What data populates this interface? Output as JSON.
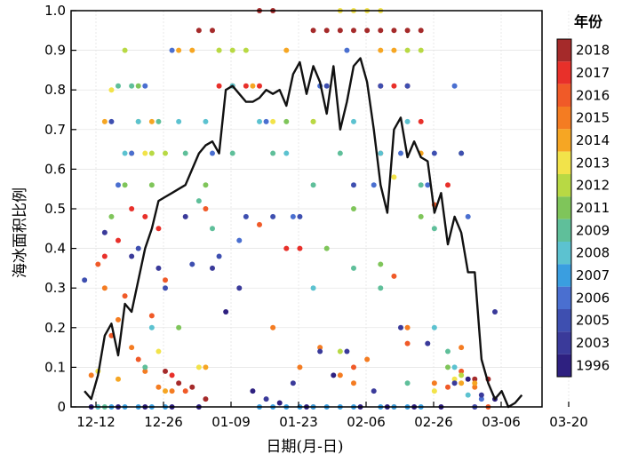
{
  "chart_data": {
    "type": "scatter",
    "xlabel": "日期(月-日)",
    "ylabel": "海冰面积比例",
    "ylim": [
      0,
      1.0
    ],
    "xlim": [
      -2,
      68
    ],
    "x_ticks": [
      "12-12",
      "12-26",
      "01-09",
      "01-23",
      "02-06",
      "02-26",
      "03-06",
      "03-20"
    ],
    "y_ticks": [
      "0",
      "0.1",
      "0.2",
      "0.3",
      "0.4",
      "0.5",
      "0.6",
      "0.7",
      "0.8",
      "0.9",
      "1.0"
    ],
    "grid": true,
    "legend": {
      "title": "年份",
      "position": "right",
      "entries": [
        "2018",
        "2017",
        "2016",
        "2015",
        "2014",
        "2013",
        "2012",
        "2011",
        "2009",
        "2008",
        "2007",
        "2006",
        "2005",
        "2003",
        "1996"
      ],
      "colors": [
        "#a52a2a",
        "#e8302a",
        "#f05a28",
        "#f47c22",
        "#f6a623",
        "#f2e34a",
        "#b8d944",
        "#7fc55a",
        "#5fbf9a",
        "#5cc2d0",
        "#3a9ee0",
        "#4a6fd0",
        "#3e4fb0",
        "#3a3a9a",
        "#2e2080"
      ]
    },
    "series": [
      {
        "name": "2018",
        "values": [
          [
            12,
            0.09
          ],
          [
            14,
            0.06
          ],
          [
            16,
            0.05
          ],
          [
            18,
            0.02
          ],
          [
            17,
            0.95
          ],
          [
            19,
            0.95
          ],
          [
            26,
            1.0
          ],
          [
            28,
            1.0
          ],
          [
            34,
            0.95
          ],
          [
            36,
            0.95
          ],
          [
            38,
            0.95
          ],
          [
            40,
            0.95
          ],
          [
            42,
            0.95
          ],
          [
            44,
            0.95
          ],
          [
            46,
            0.95
          ],
          [
            48,
            0.95
          ],
          [
            50,
            0.95
          ],
          [
            58,
            0.07
          ],
          [
            60,
            0.07
          ]
        ]
      },
      {
        "name": "2017",
        "values": [
          [
            3,
            0.38
          ],
          [
            5,
            0.42
          ],
          [
            7,
            0.5
          ],
          [
            9,
            0.48
          ],
          [
            11,
            0.45
          ],
          [
            13,
            0.08
          ],
          [
            20,
            0.81
          ],
          [
            22,
            0.81
          ],
          [
            24,
            0.81
          ],
          [
            26,
            0.81
          ],
          [
            30,
            0.4
          ],
          [
            32,
            0.4
          ],
          [
            44,
            0.81
          ],
          [
            46,
            0.81
          ],
          [
            48,
            0.81
          ],
          [
            50,
            0.72
          ],
          [
            54,
            0.56
          ],
          [
            58,
            0.0
          ]
        ]
      },
      {
        "name": "2016",
        "values": [
          [
            2,
            0.36
          ],
          [
            4,
            0.18
          ],
          [
            6,
            0.28
          ],
          [
            8,
            0.12
          ],
          [
            10,
            0.23
          ],
          [
            12,
            0.32
          ],
          [
            15,
            0.04
          ],
          [
            18,
            0.5
          ],
          [
            26,
            0.46
          ],
          [
            34,
            0.0
          ],
          [
            40,
            0.1
          ],
          [
            44,
            0.64
          ],
          [
            46,
            0.33
          ],
          [
            48,
            0.16
          ],
          [
            52,
            0.51
          ],
          [
            54,
            0.05
          ],
          [
            56,
            0.09
          ],
          [
            60,
            0.0
          ]
        ]
      },
      {
        "name": "2015",
        "values": [
          [
            1,
            0.08
          ],
          [
            3,
            0.3
          ],
          [
            5,
            0.22
          ],
          [
            7,
            0.15
          ],
          [
            9,
            0.09
          ],
          [
            11,
            0.05
          ],
          [
            13,
            0.04
          ],
          [
            28,
            0.2
          ],
          [
            32,
            0.1
          ],
          [
            35,
            0.15
          ],
          [
            38,
            0.08
          ],
          [
            40,
            0.06
          ],
          [
            42,
            0.12
          ],
          [
            46,
            0.0
          ],
          [
            48,
            0.2
          ],
          [
            52,
            0.06
          ],
          [
            56,
            0.15
          ],
          [
            58,
            0.05
          ]
        ]
      },
      {
        "name": "2014",
        "values": [
          [
            3,
            0.72
          ],
          [
            5,
            0.07
          ],
          [
            7,
            0.64
          ],
          [
            10,
            0.72
          ],
          [
            12,
            0.04
          ],
          [
            14,
            0.9
          ],
          [
            16,
            0.9
          ],
          [
            18,
            0.1
          ],
          [
            25,
            0.81
          ],
          [
            30,
            0.9
          ],
          [
            34,
            0.72
          ],
          [
            44,
            0.9
          ],
          [
            46,
            0.9
          ],
          [
            50,
            0.64
          ],
          [
            56,
            0.06
          ],
          [
            58,
            0.06
          ]
        ]
      },
      {
        "name": "2013",
        "values": [
          [
            2,
            0.09
          ],
          [
            4,
            0.8
          ],
          [
            9,
            0.64
          ],
          [
            11,
            0.14
          ],
          [
            17,
            0.1
          ],
          [
            20,
            0.9
          ],
          [
            28,
            0.72
          ],
          [
            38,
            1.0
          ],
          [
            40,
            1.0
          ],
          [
            42,
            1.0
          ],
          [
            44,
            1.0
          ],
          [
            46,
            0.58
          ],
          [
            52,
            0.04
          ],
          [
            55,
            0.07
          ]
        ]
      },
      {
        "name": "2012",
        "values": [
          [
            2,
            0.0
          ],
          [
            6,
            0.9
          ],
          [
            8,
            0.72
          ],
          [
            10,
            0.64
          ],
          [
            12,
            0.64
          ],
          [
            20,
            0.9
          ],
          [
            22,
            0.9
          ],
          [
            24,
            0.9
          ],
          [
            34,
            0.72
          ],
          [
            38,
            0.14
          ],
          [
            48,
            0.9
          ],
          [
            50,
            0.9
          ],
          [
            56,
            0.08
          ]
        ]
      },
      {
        "name": "2011",
        "values": [
          [
            4,
            0.48
          ],
          [
            6,
            0.56
          ],
          [
            8,
            0.81
          ],
          [
            10,
            0.56
          ],
          [
            14,
            0.2
          ],
          [
            18,
            0.56
          ],
          [
            22,
            0.81
          ],
          [
            30,
            0.72
          ],
          [
            36,
            0.4
          ],
          [
            40,
            0.5
          ],
          [
            44,
            0.36
          ],
          [
            50,
            0.48
          ],
          [
            54,
            0.1
          ],
          [
            56,
            0.64
          ]
        ]
      },
      {
        "name": "2009",
        "values": [
          [
            3,
            0.0
          ],
          [
            5,
            0.81
          ],
          [
            7,
            0.81
          ],
          [
            9,
            0.1
          ],
          [
            11,
            0.72
          ],
          [
            15,
            0.64
          ],
          [
            17,
            0.52
          ],
          [
            19,
            0.45
          ],
          [
            22,
            0.64
          ],
          [
            28,
            0.64
          ],
          [
            34,
            0.56
          ],
          [
            38,
            0.64
          ],
          [
            40,
            0.35
          ],
          [
            44,
            0.3
          ],
          [
            48,
            0.06
          ],
          [
            50,
            0.56
          ],
          [
            52,
            0.45
          ],
          [
            54,
            0.14
          ]
        ]
      },
      {
        "name": "2008",
        "values": [
          [
            2,
            0.0
          ],
          [
            6,
            0.64
          ],
          [
            8,
            0.72
          ],
          [
            10,
            0.2
          ],
          [
            14,
            0.72
          ],
          [
            18,
            0.72
          ],
          [
            22,
            0.81
          ],
          [
            26,
            0.72
          ],
          [
            30,
            0.64
          ],
          [
            34,
            0.3
          ],
          [
            40,
            0.72
          ],
          [
            44,
            0.64
          ],
          [
            48,
            0.72
          ],
          [
            52,
            0.2
          ],
          [
            55,
            0.1
          ],
          [
            57,
            0.03
          ]
        ]
      },
      {
        "name": "2007",
        "values": [
          [
            4,
            0.0
          ],
          [
            6,
            0.0
          ],
          [
            8,
            0.0
          ],
          [
            10,
            0.0
          ],
          [
            12,
            0.0
          ],
          [
            26,
            0.0
          ],
          [
            28,
            0.0
          ],
          [
            30,
            0.0
          ],
          [
            32,
            0.0
          ],
          [
            34,
            0.0
          ],
          [
            36,
            0.0
          ],
          [
            38,
            0.0
          ],
          [
            40,
            0.0
          ],
          [
            44,
            0.0
          ],
          [
            46,
            0.0
          ],
          [
            48,
            0.0
          ],
          [
            50,
            0.0
          ]
        ]
      },
      {
        "name": "2006",
        "values": [
          [
            5,
            0.56
          ],
          [
            7,
            0.64
          ],
          [
            9,
            0.81
          ],
          [
            13,
            0.9
          ],
          [
            19,
            0.64
          ],
          [
            23,
            0.42
          ],
          [
            27,
            0.72
          ],
          [
            31,
            0.48
          ],
          [
            35,
            0.81
          ],
          [
            39,
            0.9
          ],
          [
            43,
            0.56
          ],
          [
            47,
            0.64
          ],
          [
            51,
            0.56
          ],
          [
            55,
            0.81
          ],
          [
            57,
            0.48
          ],
          [
            59,
            0.02
          ]
        ]
      },
      {
        "name": "2005",
        "values": [
          [
            0,
            0.32
          ],
          [
            4,
            0.72
          ],
          [
            8,
            0.4
          ],
          [
            12,
            0.3
          ],
          [
            16,
            0.36
          ],
          [
            20,
            0.38
          ],
          [
            24,
            0.48
          ],
          [
            28,
            0.48
          ],
          [
            32,
            0.48
          ],
          [
            36,
            0.81
          ],
          [
            40,
            0.56
          ],
          [
            44,
            0.81
          ],
          [
            48,
            0.81
          ],
          [
            52,
            0.64
          ],
          [
            56,
            0.64
          ],
          [
            58,
            0.0
          ]
        ]
      },
      {
        "name": "2003",
        "values": [
          [
            3,
            0.44
          ],
          [
            7,
            0.38
          ],
          [
            11,
            0.35
          ],
          [
            15,
            0.48
          ],
          [
            19,
            0.35
          ],
          [
            23,
            0.3
          ],
          [
            27,
            0.02
          ],
          [
            31,
            0.06
          ],
          [
            35,
            0.14
          ],
          [
            39,
            0.14
          ],
          [
            43,
            0.04
          ],
          [
            47,
            0.2
          ],
          [
            51,
            0.16
          ],
          [
            55,
            0.06
          ],
          [
            59,
            0.03
          ],
          [
            61,
            0.24
          ]
        ]
      },
      {
        "name": "1996",
        "values": [
          [
            1,
            0.0
          ],
          [
            5,
            0.0
          ],
          [
            9,
            0.0
          ],
          [
            13,
            0.0
          ],
          [
            17,
            0.0
          ],
          [
            21,
            0.24
          ],
          [
            25,
            0.04
          ],
          [
            29,
            0.01
          ],
          [
            33,
            0.0
          ],
          [
            37,
            0.08
          ],
          [
            41,
            0.0
          ],
          [
            45,
            0.0
          ],
          [
            49,
            0.0
          ],
          [
            53,
            0.0
          ],
          [
            57,
            0.07
          ],
          [
            61,
            0.02
          ]
        ]
      }
    ],
    "mean_line": {
      "values": [
        [
          0,
          0.04
        ],
        [
          1,
          0.02
        ],
        [
          2,
          0.08
        ],
        [
          3,
          0.18
        ],
        [
          4,
          0.21
        ],
        [
          5,
          0.13
        ],
        [
          6,
          0.26
        ],
        [
          7,
          0.24
        ],
        [
          8,
          0.32
        ],
        [
          9,
          0.4
        ],
        [
          10,
          0.45
        ],
        [
          11,
          0.52
        ],
        [
          12,
          0.53
        ],
        [
          13,
          0.54
        ],
        [
          14,
          0.55
        ],
        [
          15,
          0.56
        ],
        [
          16,
          0.6
        ],
        [
          17,
          0.64
        ],
        [
          18,
          0.66
        ],
        [
          19,
          0.67
        ],
        [
          20,
          0.64
        ],
        [
          21,
          0.8
        ],
        [
          22,
          0.81
        ],
        [
          23,
          0.79
        ],
        [
          24,
          0.77
        ],
        [
          25,
          0.77
        ],
        [
          26,
          0.78
        ],
        [
          27,
          0.8
        ],
        [
          28,
          0.79
        ],
        [
          29,
          0.8
        ],
        [
          30,
          0.76
        ],
        [
          31,
          0.84
        ],
        [
          32,
          0.87
        ],
        [
          33,
          0.79
        ],
        [
          34,
          0.86
        ],
        [
          35,
          0.82
        ],
        [
          36,
          0.74
        ],
        [
          37,
          0.86
        ],
        [
          38,
          0.7
        ],
        [
          39,
          0.77
        ],
        [
          40,
          0.86
        ],
        [
          41,
          0.88
        ],
        [
          42,
          0.82
        ],
        [
          43,
          0.7
        ],
        [
          44,
          0.56
        ],
        [
          45,
          0.49
        ],
        [
          46,
          0.7
        ],
        [
          47,
          0.73
        ],
        [
          48,
          0.63
        ],
        [
          49,
          0.67
        ],
        [
          50,
          0.63
        ],
        [
          51,
          0.62
        ],
        [
          52,
          0.49
        ],
        [
          53,
          0.54
        ],
        [
          54,
          0.41
        ],
        [
          55,
          0.48
        ],
        [
          56,
          0.44
        ],
        [
          57,
          0.34
        ],
        [
          58,
          0.34
        ],
        [
          59,
          0.12
        ],
        [
          60,
          0.06
        ],
        [
          61,
          0.02
        ],
        [
          62,
          0.04
        ],
        [
          63,
          0.0
        ],
        [
          64,
          0.01
        ],
        [
          65,
          0.03
        ]
      ]
    }
  }
}
